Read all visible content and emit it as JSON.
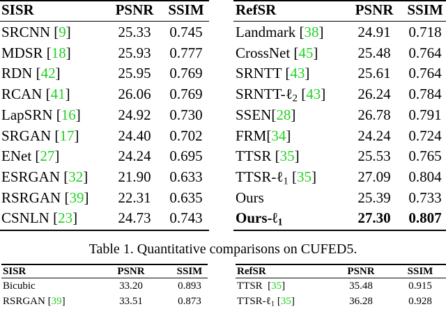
{
  "table1": {
    "left": {
      "header": [
        "SISR",
        "PSNR",
        "SSIM"
      ],
      "rows": [
        {
          "method": [
            {
              "text": "SRCNN ["
            },
            {
              "text": "9",
              "style": "cite"
            },
            {
              "text": "]"
            }
          ],
          "psnr": "25.33",
          "ssim": "0.745"
        },
        {
          "method": [
            {
              "text": "MDSR ["
            },
            {
              "text": "18",
              "style": "cite"
            },
            {
              "text": "]"
            }
          ],
          "psnr": "25.93",
          "ssim": "0.777"
        },
        {
          "method": [
            {
              "text": "RDN ["
            },
            {
              "text": "42",
              "style": "cite"
            },
            {
              "text": "]"
            }
          ],
          "psnr": "25.95",
          "ssim": "0.769"
        },
        {
          "method": [
            {
              "text": "RCAN ["
            },
            {
              "text": "41",
              "style": "cite"
            },
            {
              "text": "]"
            }
          ],
          "psnr": "26.06",
          "ssim": "0.769"
        },
        {
          "method": [
            {
              "text": "LapSRN ["
            },
            {
              "text": "16",
              "style": "cite"
            },
            {
              "text": "]"
            }
          ],
          "psnr": "24.92",
          "ssim": "0.730"
        },
        {
          "method": [
            {
              "text": "SRGAN ["
            },
            {
              "text": "17",
              "style": "cite"
            },
            {
              "text": "]"
            }
          ],
          "psnr": "24.40",
          "ssim": "0.702"
        },
        {
          "method": [
            {
              "text": "ENet ["
            },
            {
              "text": "27",
              "style": "cite"
            },
            {
              "text": "]"
            }
          ],
          "psnr": "24.24",
          "ssim": "0.695"
        },
        {
          "method": [
            {
              "text": "ESRGAN ["
            },
            {
              "text": "32",
              "style": "cite"
            },
            {
              "text": "]"
            }
          ],
          "psnr": "21.90",
          "ssim": "0.633"
        },
        {
          "method": [
            {
              "text": "RSRGAN ["
            },
            {
              "text": "39",
              "style": "cite"
            },
            {
              "text": "]"
            }
          ],
          "psnr": "22.31",
          "ssim": "0.635"
        },
        {
          "method": [
            {
              "text": "CSNLN ["
            },
            {
              "text": "23",
              "style": "cite"
            },
            {
              "text": "]"
            }
          ],
          "psnr": "24.73",
          "ssim": "0.743"
        }
      ]
    },
    "right": {
      "header": [
        "RefSR",
        "PSNR",
        "SSIM"
      ],
      "rows": [
        {
          "method": [
            {
              "text": "Landmark ["
            },
            {
              "text": "38",
              "style": "cite"
            },
            {
              "text": "]"
            }
          ],
          "psnr": "24.91",
          "ssim": "0.718"
        },
        {
          "method": [
            {
              "text": "CrossNet ["
            },
            {
              "text": "45",
              "style": "cite"
            },
            {
              "text": "]"
            }
          ],
          "psnr": "25.48",
          "ssim": "0.764"
        },
        {
          "method": [
            {
              "text": "SRNTT ["
            },
            {
              "text": "43",
              "style": "cite"
            },
            {
              "text": "]"
            }
          ],
          "psnr": "25.61",
          "ssim": "0.764"
        },
        {
          "method": [
            {
              "text": "SRNTT-ℓ"
            },
            {
              "text": "2",
              "style": "sub"
            },
            {
              "text": " ["
            },
            {
              "text": "43",
              "style": "cite"
            },
            {
              "text": "]"
            }
          ],
          "psnr": "26.24",
          "ssim": "0.784"
        },
        {
          "method": [
            {
              "text": "SSEN["
            },
            {
              "text": "28",
              "style": "cite"
            },
            {
              "text": "]"
            }
          ],
          "psnr": "26.78",
          "ssim": "0.791"
        },
        {
          "method": [
            {
              "text": "FRM["
            },
            {
              "text": "34",
              "style": "cite"
            },
            {
              "text": "]"
            }
          ],
          "psnr": "24.24",
          "ssim": "0.724"
        },
        {
          "method": [
            {
              "text": "TTSR ["
            },
            {
              "text": "35",
              "style": "cite"
            },
            {
              "text": "]"
            }
          ],
          "psnr": "25.53",
          "ssim": "0.765"
        },
        {
          "method": [
            {
              "text": "TTSR-ℓ"
            },
            {
              "text": "1",
              "style": "sub"
            },
            {
              "text": " ["
            },
            {
              "text": "35",
              "style": "cite"
            },
            {
              "text": "]"
            }
          ],
          "psnr": "27.09",
          "ssim": "0.804"
        },
        {
          "method": [
            {
              "text": "Ours"
            }
          ],
          "psnr": "25.39",
          "ssim": "0.733"
        },
        {
          "method": [
            {
              "text": "Ours-ℓ"
            },
            {
              "text": "1",
              "style": "sub"
            }
          ],
          "psnr": "27.30",
          "ssim": "0.807",
          "bold": true
        }
      ]
    },
    "caption": "Table 1. Quantitative comparisons on CUFED5."
  },
  "table2": {
    "left": {
      "header": [
        "SISR",
        "PSNR",
        "SSIM"
      ],
      "rows": [
        {
          "method": [
            {
              "text": "Bicubic"
            }
          ],
          "psnr": "33.20",
          "ssim": "0.893"
        },
        {
          "method": [
            {
              "text": "RSRGAN ["
            },
            {
              "text": "39",
              "style": "cite"
            },
            {
              "text": "]"
            }
          ],
          "psnr": "33.51",
          "ssim": "0.873"
        }
      ]
    },
    "right": {
      "header": [
        "RefSR",
        "PSNR",
        "SSIM"
      ],
      "rows": [
        {
          "method": [
            {
              "text": "TTSR  ["
            },
            {
              "text": "35",
              "style": "cite"
            },
            {
              "text": "]"
            }
          ],
          "psnr": "35.48",
          "ssim": "0.915"
        },
        {
          "method": [
            {
              "text": "TTSR-ℓ"
            },
            {
              "text": "1",
              "style": "sub"
            },
            {
              "text": " ["
            },
            {
              "text": "35",
              "style": "cite"
            },
            {
              "text": "]"
            }
          ],
          "psnr": "36.28",
          "ssim": "0.928"
        }
      ]
    }
  }
}
